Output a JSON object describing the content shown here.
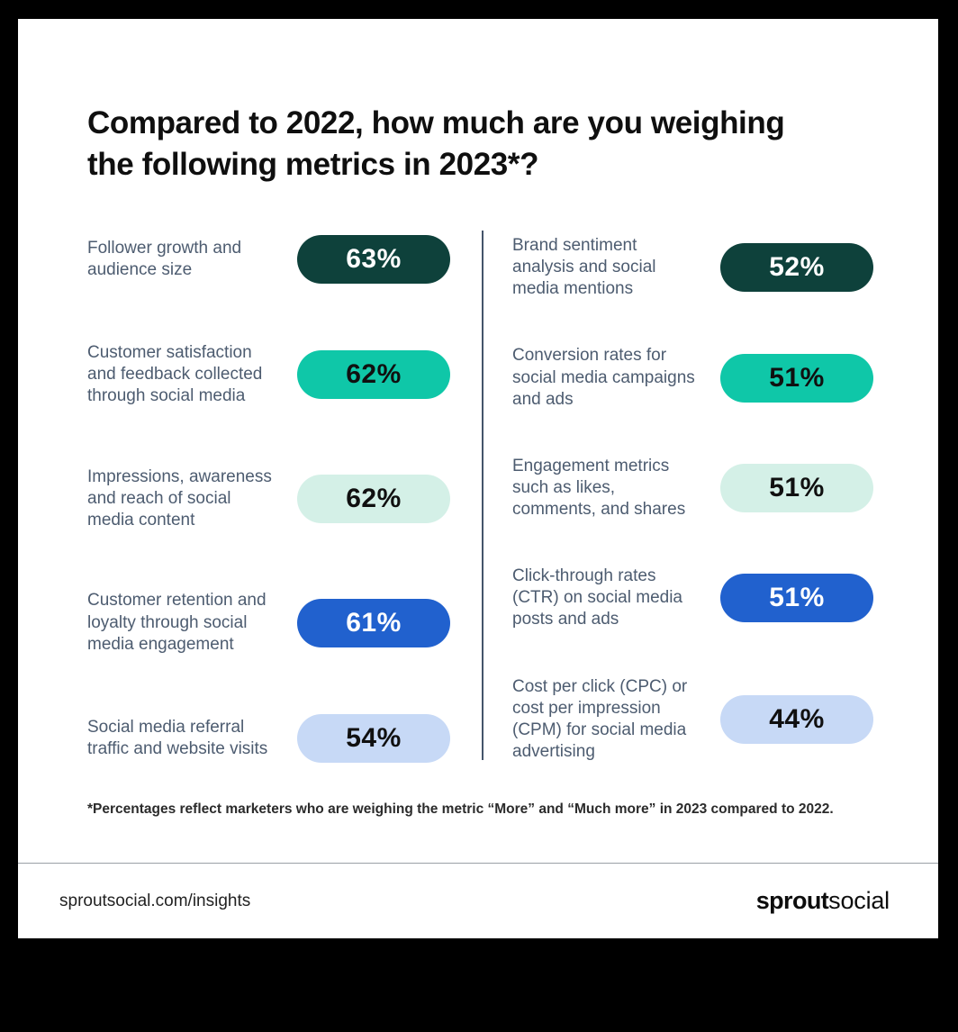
{
  "title": "Compared to 2022, how much are you weighing the following metrics in 2023*?",
  "footnote": "*Percentages reflect marketers who are weighing the metric “More” and “Much more” in 2023 compared to 2022.",
  "footer": {
    "url": "sproutsocial.com/insights",
    "logo": {
      "bold": "sprout",
      "regular": "social"
    }
  },
  "colors": {
    "dark_teal": "#0E413B",
    "teal": "#0FC7A8",
    "mint": "#D4F0E7",
    "blue": "#2161CE",
    "lavender": "#C7D9F6",
    "label_text": "#4D5C70",
    "column_divider": "#44546A",
    "frame": "#000000",
    "card": "#FFFFFF"
  },
  "metrics": {
    "left": [
      {
        "label": "Follower growth and audience size",
        "value": "63%",
        "bg": "#0E413B",
        "fg": "#FFFFFF"
      },
      {
        "label": "Customer satisfaction and feedback collected through social media",
        "value": "62%",
        "bg": "#0FC7A8",
        "fg": "#101010"
      },
      {
        "label": "Impressions, awareness and reach of social media content",
        "value": "62%",
        "bg": "#D4F0E7",
        "fg": "#101010"
      },
      {
        "label": "Customer retention and loyalty through social media engagement",
        "value": "61%",
        "bg": "#2161CE",
        "fg": "#FFFFFF"
      },
      {
        "label": "Social media referral traffic and website visits",
        "value": "54%",
        "bg": "#C7D9F6",
        "fg": "#101010"
      }
    ],
    "right": [
      {
        "label": "Brand sentiment analysis and social media mentions",
        "value": "52%",
        "bg": "#0E413B",
        "fg": "#FFFFFF"
      },
      {
        "label": "Conversion rates for social media campaigns and ads",
        "value": "51%",
        "bg": "#0FC7A8",
        "fg": "#101010"
      },
      {
        "label": "Engagement metrics such as likes, comments, and shares",
        "value": "51%",
        "bg": "#D4F0E7",
        "fg": "#101010"
      },
      {
        "label": "Click-through rates (CTR) on social media posts and ads",
        "value": "51%",
        "bg": "#2161CE",
        "fg": "#FFFFFF"
      },
      {
        "label": "Cost per click (CPC) or cost per impression (CPM) for social media advertising",
        "value": "44%",
        "bg": "#C7D9F6",
        "fg": "#101010"
      }
    ]
  },
  "chart_data": {
    "type": "bar",
    "title": "Compared to 2022, how much are you weighing the following metrics in 2023*?",
    "categories": [
      "Follower growth and audience size",
      "Customer satisfaction and feedback collected through social media",
      "Impressions, awareness and reach of social media content",
      "Customer retention and loyalty through social media engagement",
      "Social media referral traffic and website visits",
      "Brand sentiment analysis and social media mentions",
      "Conversion rates for social media campaigns and ads",
      "Engagement metrics such as likes, comments, and shares",
      "Click-through rates (CTR) on social media posts and ads",
      "Cost per click (CPC) or cost per impression (CPM) for social media advertising"
    ],
    "values": [
      63,
      62,
      62,
      61,
      54,
      52,
      51,
      51,
      51,
      44
    ],
    "unit": "%",
    "layout": "two-column value pills, 5 rows per column",
    "note": "*Percentages reflect marketers who are weighing the metric “More” and “Much more” in 2023 compared to 2022.",
    "source": "sproutsocial.com/insights"
  }
}
